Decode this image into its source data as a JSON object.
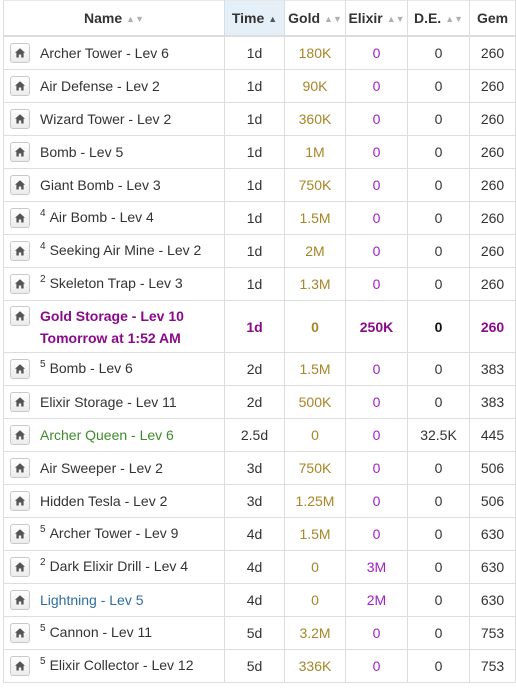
{
  "columns": {
    "name": "Name",
    "time": "Time",
    "gold": "Gold",
    "elixir": "Elixir",
    "de": "D.E.",
    "gem": "Gem"
  },
  "sort_indicator": {
    "neutral": "▲▼",
    "ascending": "▲"
  },
  "icons": {
    "row_action": "home-icon"
  },
  "colors": {
    "gold": "#a88527",
    "elixir": "#a51fc2",
    "active_row": "#8a0a8c",
    "hero_name": "#3e8b2d",
    "spell_name": "#2f6d9f",
    "sorted_header_bg": "#e4eff8"
  },
  "rows": [
    {
      "sup": "",
      "name": "Archer Tower - Lev 6",
      "time": "1d",
      "gold": "180K",
      "elixir": "0",
      "de": "0",
      "gem": "260"
    },
    {
      "sup": "",
      "name": "Air Defense - Lev 2",
      "time": "1d",
      "gold": "90K",
      "elixir": "0",
      "de": "0",
      "gem": "260"
    },
    {
      "sup": "",
      "name": "Wizard Tower - Lev 2",
      "time": "1d",
      "gold": "360K",
      "elixir": "0",
      "de": "0",
      "gem": "260"
    },
    {
      "sup": "",
      "name": "Bomb - Lev 5",
      "time": "1d",
      "gold": "1M",
      "elixir": "0",
      "de": "0",
      "gem": "260"
    },
    {
      "sup": "",
      "name": "Giant Bomb - Lev 3",
      "time": "1d",
      "gold": "750K",
      "elixir": "0",
      "de": "0",
      "gem": "260"
    },
    {
      "sup": "4",
      "name": "Air Bomb - Lev 4",
      "time": "1d",
      "gold": "1.5M",
      "elixir": "0",
      "de": "0",
      "gem": "260"
    },
    {
      "sup": "4",
      "name": "Seeking Air Mine - Lev 2",
      "time": "1d",
      "gold": "2M",
      "elixir": "0",
      "de": "0",
      "gem": "260"
    },
    {
      "sup": "2",
      "name": "Skeleton Trap - Lev 3",
      "time": "1d",
      "gold": "1.3M",
      "elixir": "0",
      "de": "0",
      "gem": "260"
    },
    {
      "sup": "",
      "name": "Gold Storage - Lev 10",
      "subline": "Tomorrow at 1:52 AM",
      "time": "1d",
      "gold": "0",
      "elixir": "250K",
      "de": "0",
      "gem": "260",
      "active": true
    },
    {
      "sup": "5",
      "name": "Bomb - Lev 6",
      "time": "2d",
      "gold": "1.5M",
      "elixir": "0",
      "de": "0",
      "gem": "383"
    },
    {
      "sup": "",
      "name": "Elixir Storage - Lev 11",
      "time": "2d",
      "gold": "500K",
      "elixir": "0",
      "de": "0",
      "gem": "383"
    },
    {
      "sup": "",
      "name": "Archer Queen - Lev 6",
      "time": "2.5d",
      "gold": "0",
      "elixir": "0",
      "de": "32.5K",
      "gem": "445",
      "name_color": "green"
    },
    {
      "sup": "",
      "name": "Air Sweeper - Lev 2",
      "time": "3d",
      "gold": "750K",
      "elixir": "0",
      "de": "0",
      "gem": "506"
    },
    {
      "sup": "",
      "name": "Hidden Tesla - Lev 2",
      "time": "3d",
      "gold": "1.25M",
      "elixir": "0",
      "de": "0",
      "gem": "506"
    },
    {
      "sup": "5",
      "name": "Archer Tower - Lev 9",
      "time": "4d",
      "gold": "1.5M",
      "elixir": "0",
      "de": "0",
      "gem": "630"
    },
    {
      "sup": "2",
      "name": "Dark Elixir Drill - Lev 4",
      "time": "4d",
      "gold": "0",
      "elixir": "3M",
      "de": "0",
      "gem": "630"
    },
    {
      "sup": "",
      "name": "Lightning - Lev 5",
      "time": "4d",
      "gold": "0",
      "elixir": "2M",
      "de": "0",
      "gem": "630",
      "name_color": "blue"
    },
    {
      "sup": "5",
      "name": "Cannon - Lev 11",
      "time": "5d",
      "gold": "3.2M",
      "elixir": "0",
      "de": "0",
      "gem": "753"
    },
    {
      "sup": "5",
      "name": "Elixir Collector - Lev 12",
      "time": "5d",
      "gold": "336K",
      "elixir": "0",
      "de": "0",
      "gem": "753"
    }
  ]
}
